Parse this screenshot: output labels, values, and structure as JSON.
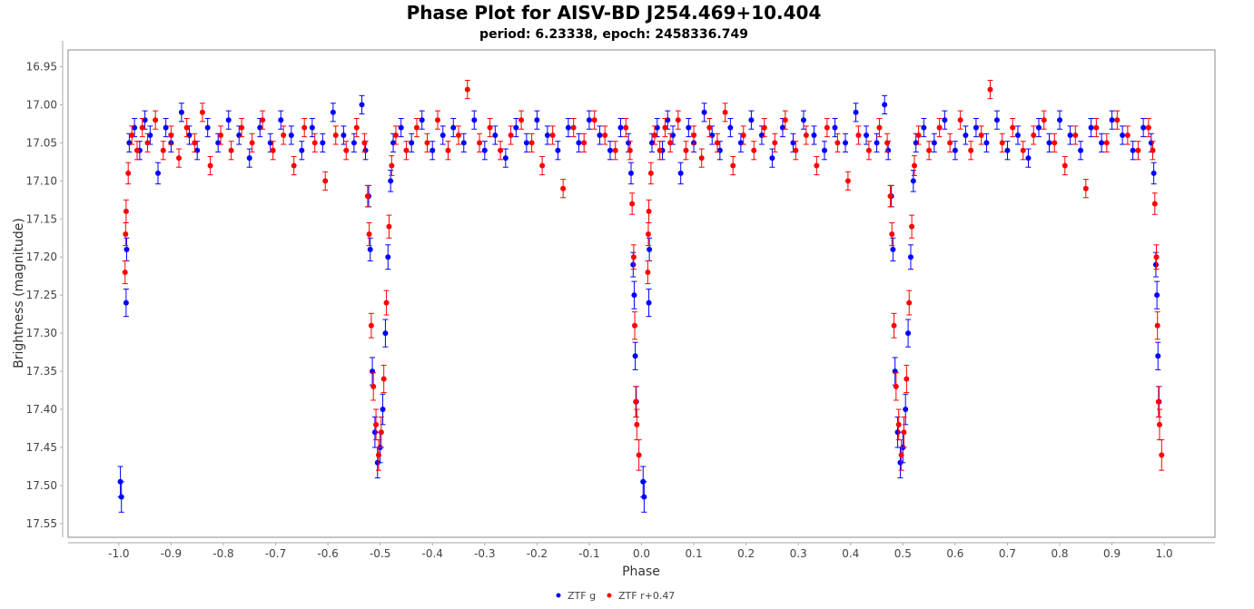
{
  "chart_data": {
    "type": "scatter",
    "title": "Phase Plot for AISV-BD J254.469+10.404",
    "subtitle": "period: 6.23338, epoch: 2458336.749",
    "xlabel": "Phase",
    "ylabel": "Brightness (magnitude)",
    "xlim": [
      -1.097,
      1.097
    ],
    "ylim": [
      17.568,
      16.928
    ],
    "y_inverted": true,
    "x_ticks": [
      "-1.0",
      "-0.9",
      "-0.8",
      "-0.7",
      "-0.6",
      "-0.5",
      "-0.4",
      "-0.3",
      "-0.2",
      "-0.1",
      "0.0",
      "0.1",
      "0.2",
      "0.3",
      "0.4",
      "0.5",
      "0.6",
      "0.7",
      "0.8",
      "0.9",
      "1.0"
    ],
    "y_ticks": [
      "16.95",
      "17.00",
      "17.05",
      "17.10",
      "17.15",
      "17.20",
      "17.25",
      "17.30",
      "17.35",
      "17.40",
      "17.45",
      "17.50",
      "17.55"
    ],
    "legend_position": "bottom-center",
    "phase_folding": "each point plotted at phase p and p-1",
    "series": [
      {
        "name": "ZTF g",
        "color": "#0000ff",
        "points": [
          [
            0.005,
            17.515,
            0.02
          ],
          [
            0.003,
            17.495,
            0.02
          ],
          [
            0.014,
            17.26,
            0.018
          ],
          [
            0.015,
            17.19,
            0.015
          ],
          [
            0.02,
            17.05,
            0.012
          ],
          [
            0.03,
            17.03,
            0.012
          ],
          [
            0.04,
            17.06,
            0.012
          ],
          [
            0.05,
            17.02,
            0.012
          ],
          [
            0.06,
            17.04,
            0.012
          ],
          [
            0.075,
            17.09,
            0.014
          ],
          [
            0.09,
            17.03,
            0.012
          ],
          [
            0.1,
            17.05,
            0.012
          ],
          [
            0.12,
            17.01,
            0.012
          ],
          [
            0.135,
            17.04,
            0.012
          ],
          [
            0.15,
            17.06,
            0.012
          ],
          [
            0.17,
            17.03,
            0.012
          ],
          [
            0.19,
            17.05,
            0.012
          ],
          [
            0.21,
            17.02,
            0.012
          ],
          [
            0.23,
            17.04,
            0.012
          ],
          [
            0.25,
            17.07,
            0.012
          ],
          [
            0.27,
            17.03,
            0.012
          ],
          [
            0.29,
            17.05,
            0.012
          ],
          [
            0.31,
            17.02,
            0.012
          ],
          [
            0.33,
            17.04,
            0.012
          ],
          [
            0.35,
            17.06,
            0.012
          ],
          [
            0.37,
            17.03,
            0.012
          ],
          [
            0.39,
            17.05,
            0.012
          ],
          [
            0.41,
            17.01,
            0.012
          ],
          [
            0.43,
            17.04,
            0.012
          ],
          [
            0.45,
            17.05,
            0.012
          ],
          [
            0.465,
            17.0,
            0.012
          ],
          [
            0.472,
            17.06,
            0.012
          ],
          [
            0.478,
            17.12,
            0.014
          ],
          [
            0.481,
            17.19,
            0.015
          ],
          [
            0.485,
            17.35,
            0.018
          ],
          [
            0.49,
            17.43,
            0.02
          ],
          [
            0.495,
            17.47,
            0.02
          ],
          [
            0.5,
            17.45,
            0.02
          ],
          [
            0.505,
            17.4,
            0.02
          ],
          [
            0.51,
            17.3,
            0.018
          ],
          [
            0.515,
            17.2,
            0.016
          ],
          [
            0.52,
            17.1,
            0.014
          ],
          [
            0.525,
            17.05,
            0.012
          ],
          [
            0.54,
            17.03,
            0.012
          ],
          [
            0.56,
            17.05,
            0.012
          ],
          [
            0.58,
            17.02,
            0.012
          ],
          [
            0.6,
            17.06,
            0.012
          ],
          [
            0.62,
            17.04,
            0.012
          ],
          [
            0.64,
            17.03,
            0.012
          ],
          [
            0.66,
            17.05,
            0.012
          ],
          [
            0.68,
            17.02,
            0.012
          ],
          [
            0.7,
            17.06,
            0.012
          ],
          [
            0.72,
            17.04,
            0.012
          ],
          [
            0.74,
            17.07,
            0.012
          ],
          [
            0.76,
            17.03,
            0.012
          ],
          [
            0.78,
            17.05,
            0.012
          ],
          [
            0.8,
            17.02,
            0.012
          ],
          [
            0.82,
            17.04,
            0.012
          ],
          [
            0.84,
            17.06,
            0.012
          ],
          [
            0.86,
            17.03,
            0.012
          ],
          [
            0.88,
            17.05,
            0.012
          ],
          [
            0.9,
            17.02,
            0.012
          ],
          [
            0.92,
            17.04,
            0.012
          ],
          [
            0.94,
            17.06,
            0.012
          ],
          [
            0.96,
            17.03,
            0.012
          ],
          [
            0.975,
            17.05,
            0.012
          ],
          [
            0.98,
            17.09,
            0.014
          ],
          [
            0.984,
            17.21,
            0.016
          ],
          [
            0.986,
            17.25,
            0.018
          ],
          [
            0.988,
            17.33,
            0.018
          ],
          [
            0.99,
            17.39,
            0.02
          ]
        ]
      },
      {
        "name": "ZTF r+0.47",
        "color": "#ff0000",
        "points": [
          [
            0.012,
            17.22,
            0.015
          ],
          [
            0.013,
            17.17,
            0.015
          ],
          [
            0.014,
            17.14,
            0.015
          ],
          [
            0.018,
            17.09,
            0.014
          ],
          [
            0.025,
            17.04,
            0.012
          ],
          [
            0.035,
            17.06,
            0.012
          ],
          [
            0.045,
            17.03,
            0.012
          ],
          [
            0.055,
            17.05,
            0.012
          ],
          [
            0.07,
            17.02,
            0.012
          ],
          [
            0.085,
            17.06,
            0.012
          ],
          [
            0.1,
            17.04,
            0.012
          ],
          [
            0.115,
            17.07,
            0.012
          ],
          [
            0.13,
            17.03,
            0.012
          ],
          [
            0.145,
            17.05,
            0.012
          ],
          [
            0.16,
            17.01,
            0.012
          ],
          [
            0.175,
            17.08,
            0.012
          ],
          [
            0.195,
            17.04,
            0.012
          ],
          [
            0.215,
            17.06,
            0.012
          ],
          [
            0.235,
            17.03,
            0.012
          ],
          [
            0.255,
            17.05,
            0.012
          ],
          [
            0.275,
            17.02,
            0.012
          ],
          [
            0.295,
            17.06,
            0.012
          ],
          [
            0.315,
            17.04,
            0.012
          ],
          [
            0.335,
            17.08,
            0.012
          ],
          [
            0.355,
            17.03,
            0.012
          ],
          [
            0.375,
            17.05,
            0.012
          ],
          [
            0.395,
            17.1,
            0.012
          ],
          [
            0.415,
            17.04,
            0.012
          ],
          [
            0.435,
            17.06,
            0.012
          ],
          [
            0.455,
            17.03,
            0.012
          ],
          [
            0.47,
            17.05,
            0.012
          ],
          [
            0.476,
            17.12,
            0.014
          ],
          [
            0.479,
            17.17,
            0.015
          ],
          [
            0.483,
            17.29,
            0.016
          ],
          [
            0.487,
            17.37,
            0.018
          ],
          [
            0.492,
            17.42,
            0.02
          ],
          [
            0.497,
            17.46,
            0.02
          ],
          [
            0.502,
            17.43,
            0.02
          ],
          [
            0.507,
            17.36,
            0.018
          ],
          [
            0.512,
            17.26,
            0.016
          ],
          [
            0.517,
            17.16,
            0.015
          ],
          [
            0.522,
            17.08,
            0.013
          ],
          [
            0.53,
            17.04,
            0.012
          ],
          [
            0.55,
            17.06,
            0.012
          ],
          [
            0.57,
            17.03,
            0.012
          ],
          [
            0.59,
            17.05,
            0.012
          ],
          [
            0.61,
            17.02,
            0.012
          ],
          [
            0.63,
            17.06,
            0.012
          ],
          [
            0.65,
            17.04,
            0.012
          ],
          [
            0.667,
            16.98,
            0.012
          ],
          [
            0.69,
            17.05,
            0.012
          ],
          [
            0.71,
            17.03,
            0.012
          ],
          [
            0.73,
            17.06,
            0.012
          ],
          [
            0.75,
            17.04,
            0.012
          ],
          [
            0.77,
            17.02,
            0.012
          ],
          [
            0.79,
            17.05,
            0.012
          ],
          [
            0.81,
            17.08,
            0.012
          ],
          [
            0.83,
            17.04,
            0.012
          ],
          [
            0.85,
            17.11,
            0.012
          ],
          [
            0.87,
            17.03,
            0.012
          ],
          [
            0.89,
            17.05,
            0.012
          ],
          [
            0.91,
            17.02,
            0.012
          ],
          [
            0.93,
            17.04,
            0.012
          ],
          [
            0.95,
            17.06,
            0.012
          ],
          [
            0.97,
            17.03,
            0.012
          ],
          [
            0.978,
            17.06,
            0.012
          ],
          [
            0.982,
            17.13,
            0.014
          ],
          [
            0.985,
            17.2,
            0.016
          ],
          [
            0.987,
            17.29,
            0.018
          ],
          [
            0.989,
            17.39,
            0.02
          ],
          [
            0.991,
            17.42,
            0.02
          ],
          [
            0.995,
            17.46,
            0.02
          ]
        ]
      }
    ]
  }
}
